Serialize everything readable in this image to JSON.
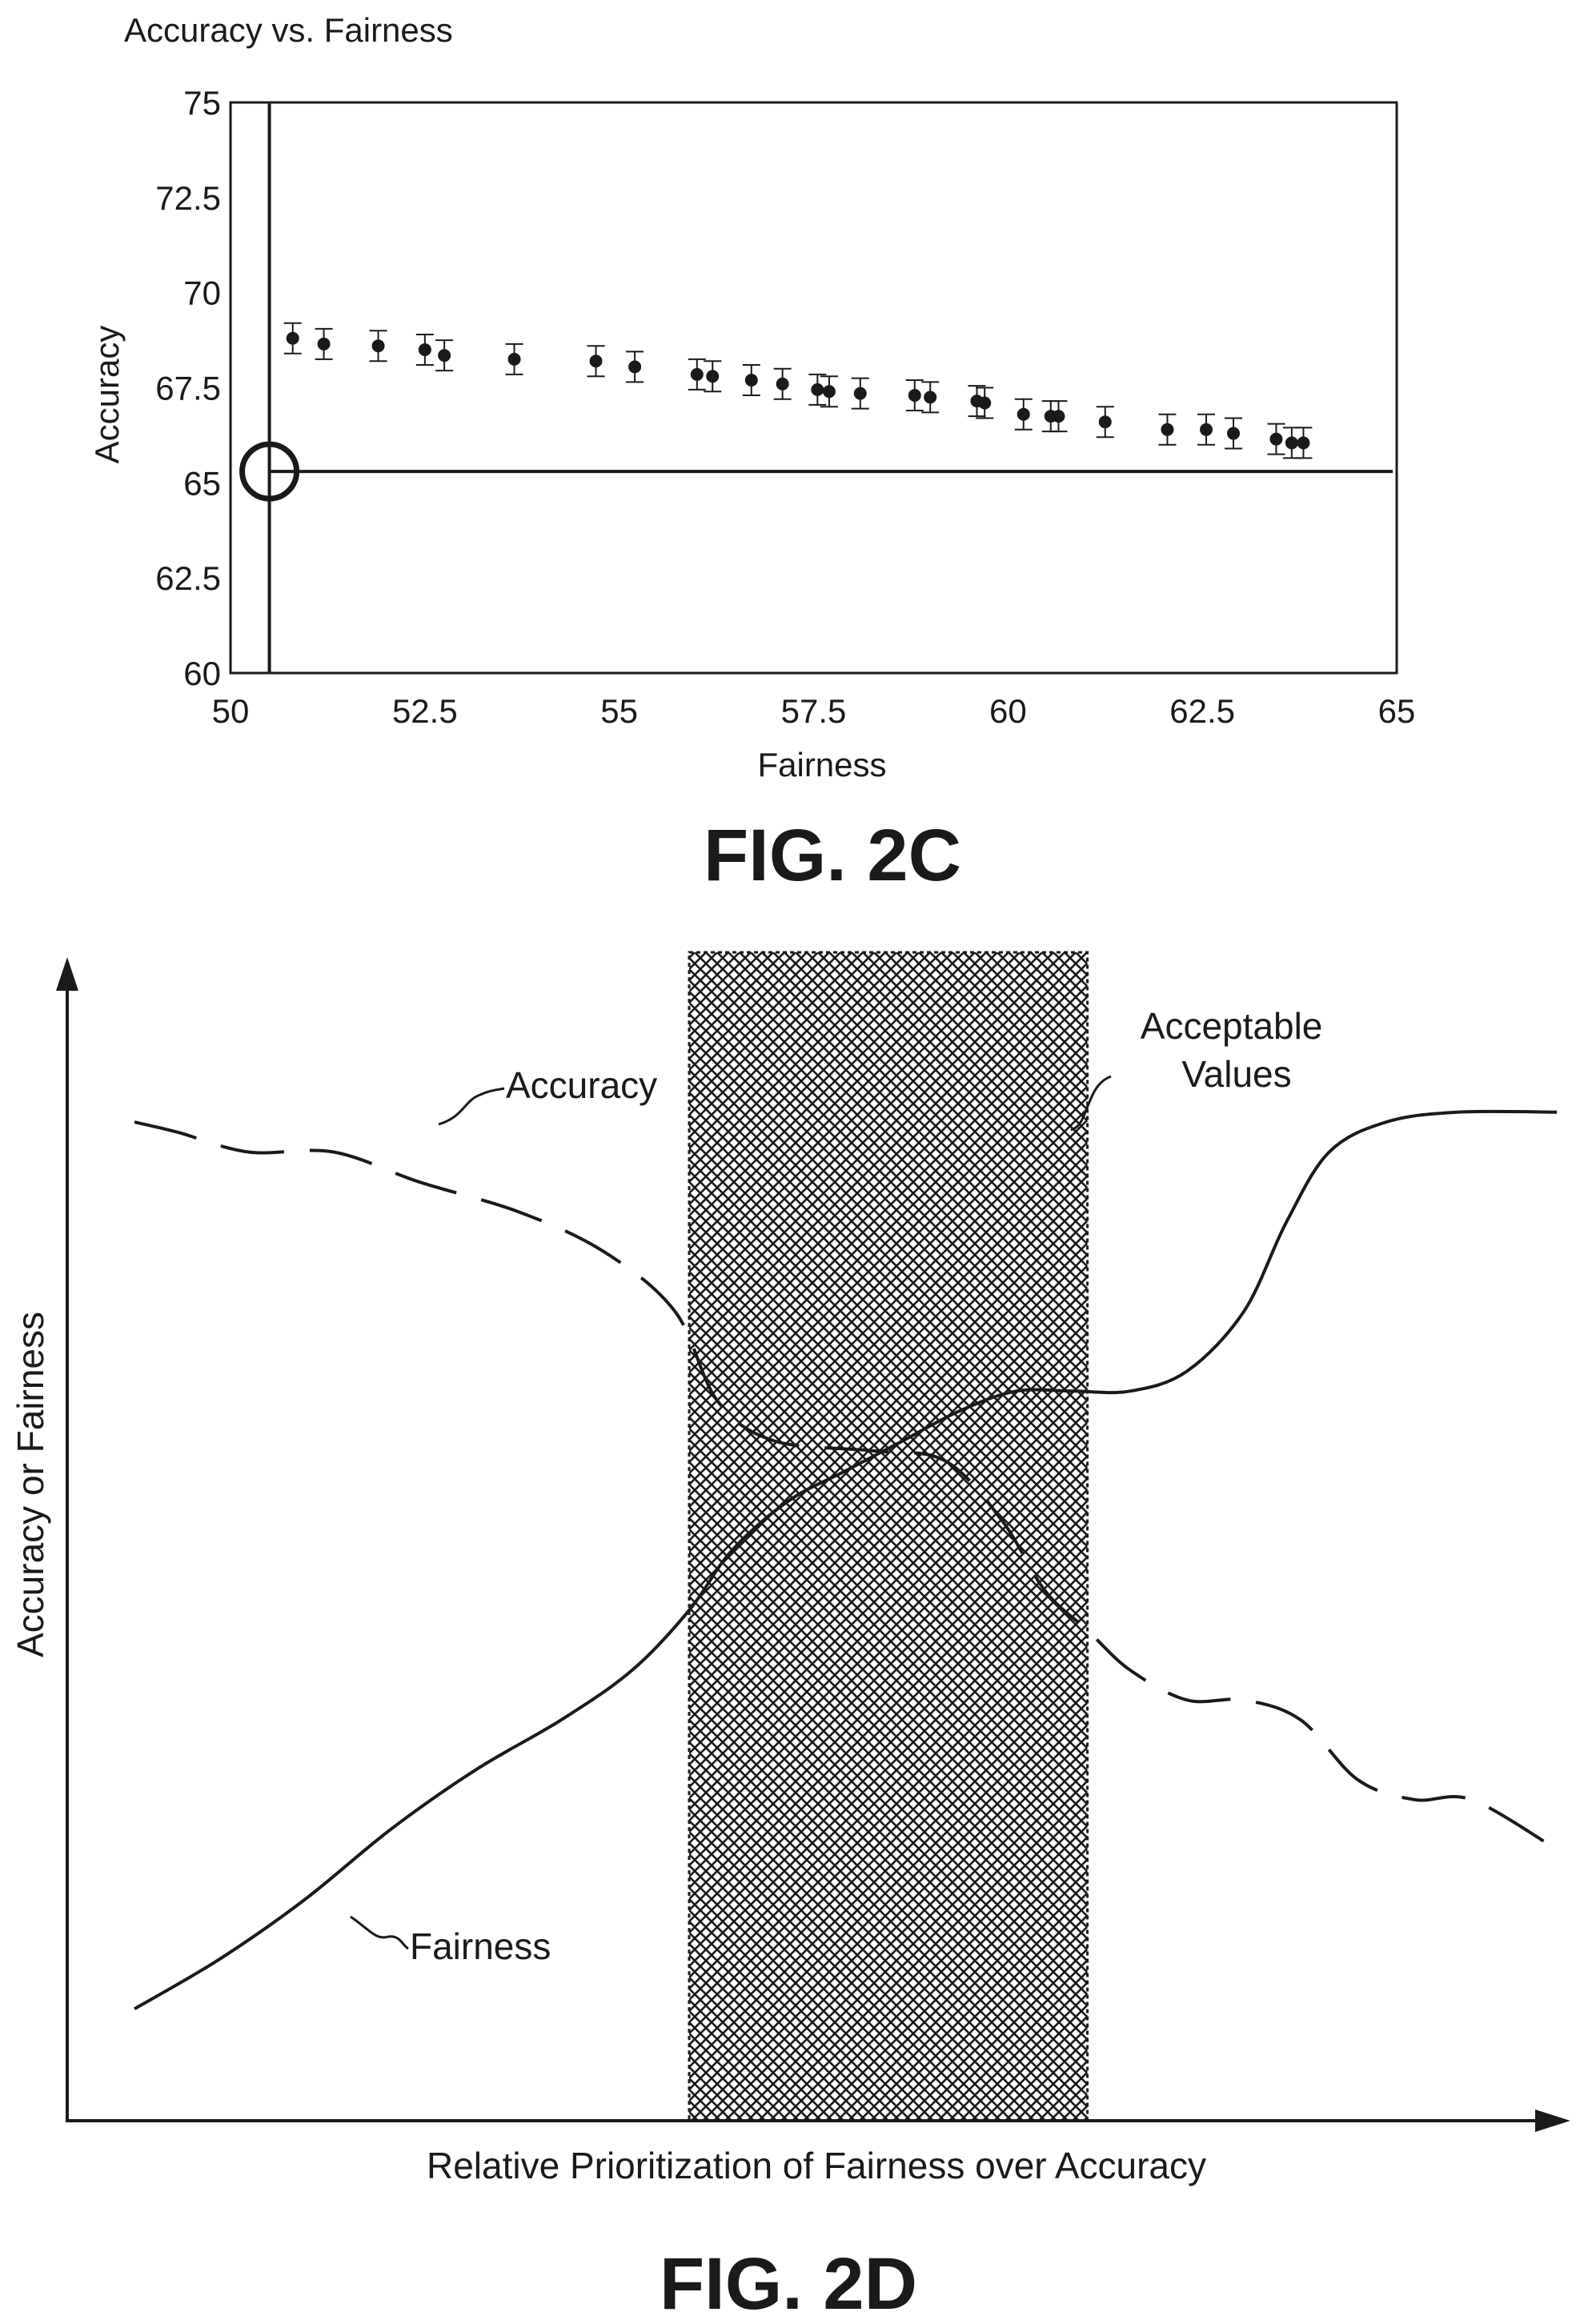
{
  "colors": {
    "ink": "#1a1a1a",
    "background": "#ffffff"
  },
  "fig2c": {
    "figure_label": "FIG. 2C",
    "chart_data": {
      "type": "scatter",
      "title": "Accuracy vs. Fairness",
      "xlabel": "Fairness",
      "ylabel": "Accuracy",
      "xlim": [
        50,
        65
      ],
      "ylim": [
        60,
        75
      ],
      "xticks": [
        50,
        52.5,
        55,
        57.5,
        60,
        62.5,
        65
      ],
      "xtick_labels": [
        "50",
        "52.5",
        "55",
        "57.5",
        "60",
        "62.5",
        "65"
      ],
      "yticks": [
        60,
        62.5,
        65,
        67.5,
        70,
        72.5,
        75
      ],
      "ytick_labels": [
        "60",
        "62.5",
        "65",
        "67.5",
        "70",
        "72.5",
        "75"
      ],
      "grid": false,
      "reference_lines": {
        "x": 50.5,
        "y": 65.3
      },
      "reference_marker": {
        "x": 50.5,
        "y": 65.3,
        "shape": "circle-crosshair"
      },
      "points": [
        {
          "x": 50.8,
          "y": 68.8,
          "err": 0.4
        },
        {
          "x": 51.2,
          "y": 68.65,
          "err": 0.4
        },
        {
          "x": 51.9,
          "y": 68.6,
          "err": 0.4
        },
        {
          "x": 52.5,
          "y": 68.5,
          "err": 0.4
        },
        {
          "x": 52.75,
          "y": 68.35,
          "err": 0.4
        },
        {
          "x": 53.65,
          "y": 68.25,
          "err": 0.4
        },
        {
          "x": 54.7,
          "y": 68.2,
          "err": 0.4
        },
        {
          "x": 55.2,
          "y": 68.05,
          "err": 0.4
        },
        {
          "x": 56.0,
          "y": 67.85,
          "err": 0.4
        },
        {
          "x": 56.2,
          "y": 67.8,
          "err": 0.4
        },
        {
          "x": 56.7,
          "y": 67.7,
          "err": 0.4
        },
        {
          "x": 57.1,
          "y": 67.6,
          "err": 0.4
        },
        {
          "x": 57.55,
          "y": 67.45,
          "err": 0.4
        },
        {
          "x": 57.7,
          "y": 67.4,
          "err": 0.4
        },
        {
          "x": 58.1,
          "y": 67.35,
          "err": 0.4
        },
        {
          "x": 58.8,
          "y": 67.3,
          "err": 0.4
        },
        {
          "x": 59.0,
          "y": 67.25,
          "err": 0.4
        },
        {
          "x": 59.6,
          "y": 67.15,
          "err": 0.4
        },
        {
          "x": 59.7,
          "y": 67.1,
          "err": 0.4
        },
        {
          "x": 60.2,
          "y": 66.8,
          "err": 0.4
        },
        {
          "x": 60.55,
          "y": 66.75,
          "err": 0.4
        },
        {
          "x": 60.65,
          "y": 66.75,
          "err": 0.4
        },
        {
          "x": 61.25,
          "y": 66.6,
          "err": 0.4
        },
        {
          "x": 62.05,
          "y": 66.4,
          "err": 0.4
        },
        {
          "x": 62.55,
          "y": 66.4,
          "err": 0.4
        },
        {
          "x": 62.9,
          "y": 66.3,
          "err": 0.4
        },
        {
          "x": 63.45,
          "y": 66.15,
          "err": 0.4
        },
        {
          "x": 63.65,
          "y": 66.05,
          "err": 0.4
        },
        {
          "x": 63.8,
          "y": 66.05,
          "err": 0.4
        }
      ]
    }
  },
  "fig2d": {
    "figure_label": "FIG. 2D",
    "chart_data": {
      "type": "line",
      "xlabel": "Relative Prioritization of Fairness over Accuracy",
      "ylabel": "Accuracy or Fairness",
      "xlim": [
        0,
        100
      ],
      "ylim": [
        0,
        100
      ],
      "axes_arrows": true,
      "tick_labels": false,
      "series": [
        {
          "name": "Accuracy",
          "style": "dashed",
          "x": [
            0,
            3,
            8,
            14,
            20,
            27,
            33,
            38,
            41,
            45,
            52,
            57,
            61,
            64,
            67,
            70,
            74,
            78,
            82,
            86,
            90,
            94,
            100
          ],
          "y": [
            93,
            92,
            90,
            90,
            87,
            84,
            80,
            74,
            65,
            61,
            60,
            59,
            53,
            46,
            42,
            38,
            35,
            35,
            33,
            27,
            25,
            25,
            20
          ]
        },
        {
          "name": "Fairness",
          "style": "solid",
          "x": [
            0,
            6,
            12,
            18,
            24,
            30,
            35,
            39,
            42,
            46,
            50,
            54,
            58,
            62,
            66,
            70,
            74,
            78,
            81,
            84,
            88,
            93,
            100
          ],
          "y": [
            4,
            9,
            15,
            22,
            28,
            33,
            38,
            44,
            50,
            55,
            58,
            61,
            64,
            66,
            66,
            66,
            68,
            74,
            83,
            90,
            93,
            94,
            94
          ]
        }
      ],
      "shaded_region": {
        "label": "Acceptable Values",
        "x_range": [
          39,
          67
        ],
        "pattern": "crosshatch"
      },
      "annotations": [
        {
          "text": "Accuracy",
          "target_series": "Accuracy"
        },
        {
          "text": "Fairness",
          "target_series": "Fairness"
        },
        {
          "text": "Acceptable Values",
          "target": "shaded_region"
        }
      ]
    }
  }
}
